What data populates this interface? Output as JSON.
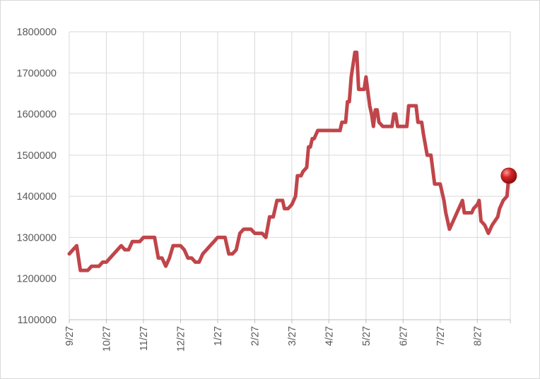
{
  "chart_data": {
    "type": "line",
    "title": "",
    "xlabel": "",
    "ylabel": "",
    "ylim": [
      1100000,
      1800000
    ],
    "yticks": [
      1100000,
      1200000,
      1300000,
      1400000,
      1500000,
      1600000,
      1700000,
      1800000
    ],
    "ytick_labels": [
      "1100000",
      "1200000",
      "1300000",
      "1400000",
      "1500000",
      "1600000",
      "1700000",
      "1800000"
    ],
    "xtick_labels": [
      "9/27",
      "10/27",
      "11/27",
      "12/27",
      "1/27",
      "2/27",
      "3/27",
      "4/27",
      "5/27",
      "6/27",
      "7/27",
      "8/27"
    ],
    "grid": "vertical and horizontal",
    "legend": "none",
    "series": [
      {
        "color": "#c0454a",
        "marker_color": "#c81e1e",
        "points": [
          [
            0,
            1260000
          ],
          [
            0.1,
            1270000
          ],
          [
            0.2,
            1280000
          ],
          [
            0.3,
            1220000
          ],
          [
            0.5,
            1220000
          ],
          [
            0.6,
            1230000
          ],
          [
            0.8,
            1230000
          ],
          [
            0.9,
            1240000
          ],
          [
            1.0,
            1240000
          ],
          [
            1.1,
            1250000
          ],
          [
            1.3,
            1270000
          ],
          [
            1.4,
            1280000
          ],
          [
            1.5,
            1270000
          ],
          [
            1.6,
            1270000
          ],
          [
            1.7,
            1290000
          ],
          [
            1.9,
            1290000
          ],
          [
            2.0,
            1300000
          ],
          [
            2.3,
            1300000
          ],
          [
            2.4,
            1250000
          ],
          [
            2.5,
            1250000
          ],
          [
            2.6,
            1230000
          ],
          [
            2.7,
            1250000
          ],
          [
            2.8,
            1280000
          ],
          [
            3.0,
            1280000
          ],
          [
            3.1,
            1270000
          ],
          [
            3.2,
            1250000
          ],
          [
            3.3,
            1250000
          ],
          [
            3.4,
            1240000
          ],
          [
            3.5,
            1240000
          ],
          [
            3.6,
            1260000
          ],
          [
            3.7,
            1270000
          ],
          [
            3.8,
            1280000
          ],
          [
            3.9,
            1290000
          ],
          [
            4.0,
            1300000
          ],
          [
            4.2,
            1300000
          ],
          [
            4.3,
            1260000
          ],
          [
            4.4,
            1260000
          ],
          [
            4.5,
            1270000
          ],
          [
            4.6,
            1310000
          ],
          [
            4.7,
            1320000
          ],
          [
            4.9,
            1320000
          ],
          [
            5.0,
            1310000
          ],
          [
            5.2,
            1310000
          ],
          [
            5.3,
            1300000
          ],
          [
            5.4,
            1350000
          ],
          [
            5.5,
            1350000
          ],
          [
            5.6,
            1390000
          ],
          [
            5.75,
            1390000
          ],
          [
            5.8,
            1370000
          ],
          [
            5.9,
            1370000
          ],
          [
            6.0,
            1380000
          ],
          [
            6.1,
            1400000
          ],
          [
            6.15,
            1450000
          ],
          [
            6.25,
            1450000
          ],
          [
            6.3,
            1460000
          ],
          [
            6.4,
            1470000
          ],
          [
            6.45,
            1520000
          ],
          [
            6.5,
            1520000
          ],
          [
            6.55,
            1540000
          ],
          [
            6.6,
            1540000
          ],
          [
            6.7,
            1560000
          ],
          [
            7.3,
            1560000
          ],
          [
            7.35,
            1580000
          ],
          [
            7.45,
            1580000
          ],
          [
            7.5,
            1630000
          ],
          [
            7.55,
            1630000
          ],
          [
            7.6,
            1690000
          ],
          [
            7.7,
            1750000
          ],
          [
            7.75,
            1750000
          ],
          [
            7.8,
            1660000
          ],
          [
            7.95,
            1660000
          ],
          [
            8.0,
            1690000
          ],
          [
            8.1,
            1620000
          ],
          [
            8.15,
            1600000
          ],
          [
            8.2,
            1570000
          ],
          [
            8.25,
            1610000
          ],
          [
            8.3,
            1610000
          ],
          [
            8.35,
            1580000
          ],
          [
            8.45,
            1570000
          ],
          [
            8.7,
            1570000
          ],
          [
            8.75,
            1600000
          ],
          [
            8.8,
            1600000
          ],
          [
            8.85,
            1570000
          ],
          [
            9.1,
            1570000
          ],
          [
            9.15,
            1620000
          ],
          [
            9.35,
            1620000
          ],
          [
            9.4,
            1580000
          ],
          [
            9.5,
            1580000
          ],
          [
            9.55,
            1550000
          ],
          [
            9.65,
            1500000
          ],
          [
            9.75,
            1500000
          ],
          [
            9.85,
            1430000
          ],
          [
            10.0,
            1430000
          ],
          [
            10.1,
            1390000
          ],
          [
            10.15,
            1360000
          ],
          [
            10.25,
            1320000
          ],
          [
            10.35,
            1340000
          ],
          [
            10.45,
            1360000
          ],
          [
            10.55,
            1380000
          ],
          [
            10.6,
            1390000
          ],
          [
            10.65,
            1360000
          ],
          [
            10.85,
            1360000
          ],
          [
            10.9,
            1370000
          ],
          [
            11.0,
            1380000
          ],
          [
            11.05,
            1390000
          ],
          [
            11.1,
            1340000
          ],
          [
            11.2,
            1330000
          ],
          [
            11.3,
            1310000
          ],
          [
            11.4,
            1330000
          ],
          [
            11.55,
            1350000
          ],
          [
            11.6,
            1370000
          ],
          [
            11.7,
            1390000
          ],
          [
            11.8,
            1400000
          ],
          [
            11.85,
            1450000
          ]
        ]
      }
    ],
    "end_marker": [
      11.85,
      1450000
    ]
  }
}
